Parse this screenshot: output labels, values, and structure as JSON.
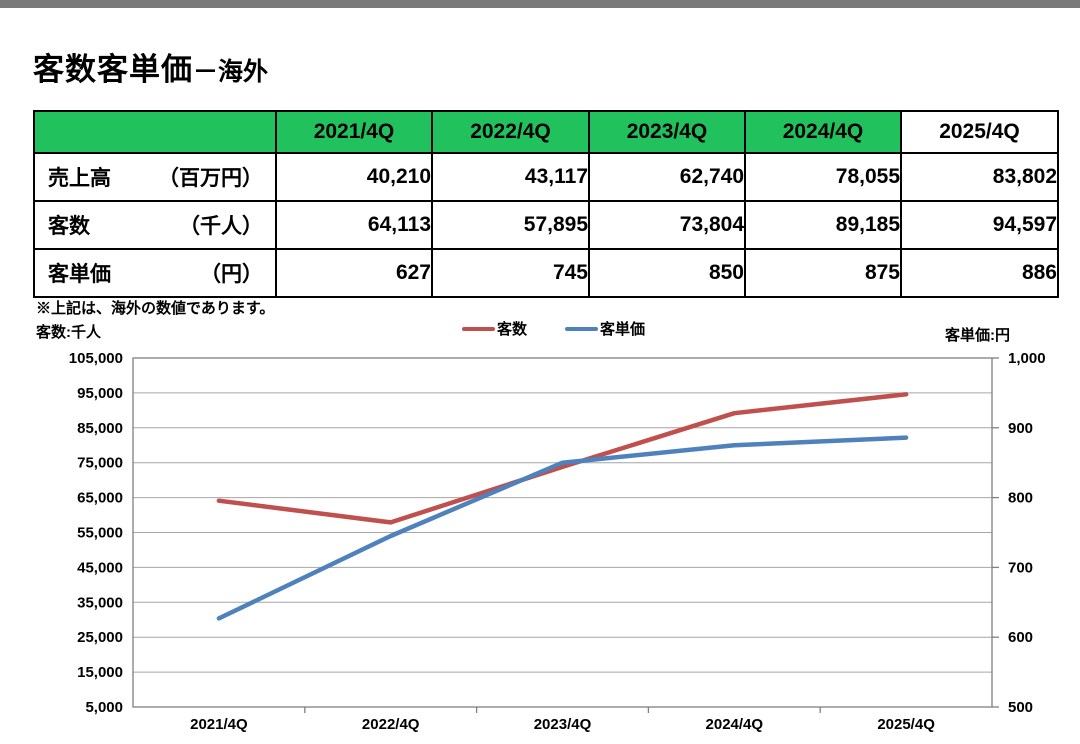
{
  "page": {
    "title_main": "客数客単価",
    "title_suffix": "－海外",
    "note": "※上記は、海外の数値であります。"
  },
  "colors": {
    "topbar_gray": "#7a7a7a",
    "header_green": "#21c25d",
    "line_red": "#c0504d",
    "line_blue": "#4f81bd",
    "grid_gray": "#a6a6a6",
    "plot_border_gray": "#808080"
  },
  "table": {
    "header": [
      "",
      "2021/4Q",
      "2022/4Q",
      "2023/4Q",
      "2024/4Q",
      "2025/4Q"
    ],
    "rows": [
      {
        "label": "売上高",
        "unit": "（百万円）",
        "values": [
          "40,210",
          "43,117",
          "62,740",
          "78,055",
          "83,802"
        ]
      },
      {
        "label": "客数",
        "unit": "（千人）",
        "values": [
          "64,113",
          "57,895",
          "73,804",
          "89,185",
          "94,597"
        ]
      },
      {
        "label": "客単価",
        "unit": "（円）",
        "values": [
          "627",
          "745",
          "850",
          "875",
          "886"
        ]
      }
    ]
  },
  "chart_data": {
    "type": "line",
    "title": "",
    "categories": [
      "2021/4Q",
      "2022/4Q",
      "2023/4Q",
      "2024/4Q",
      "2025/4Q"
    ],
    "series": [
      {
        "name": "客数",
        "axis": "left",
        "color": "#c0504d",
        "values": [
          64113,
          57895,
          73804,
          89185,
          94597
        ]
      },
      {
        "name": "客単価",
        "axis": "right",
        "color": "#4f81bd",
        "values": [
          627,
          745,
          850,
          875,
          886
        ]
      }
    ],
    "left_axis": {
      "title": "客数:千人",
      "min": 5000,
      "max": 105000,
      "step": 10000
    },
    "right_axis": {
      "title": "客単価:円",
      "min": 500,
      "max": 1000,
      "label_step": 100
    },
    "grid": true,
    "legend_position": "top"
  }
}
